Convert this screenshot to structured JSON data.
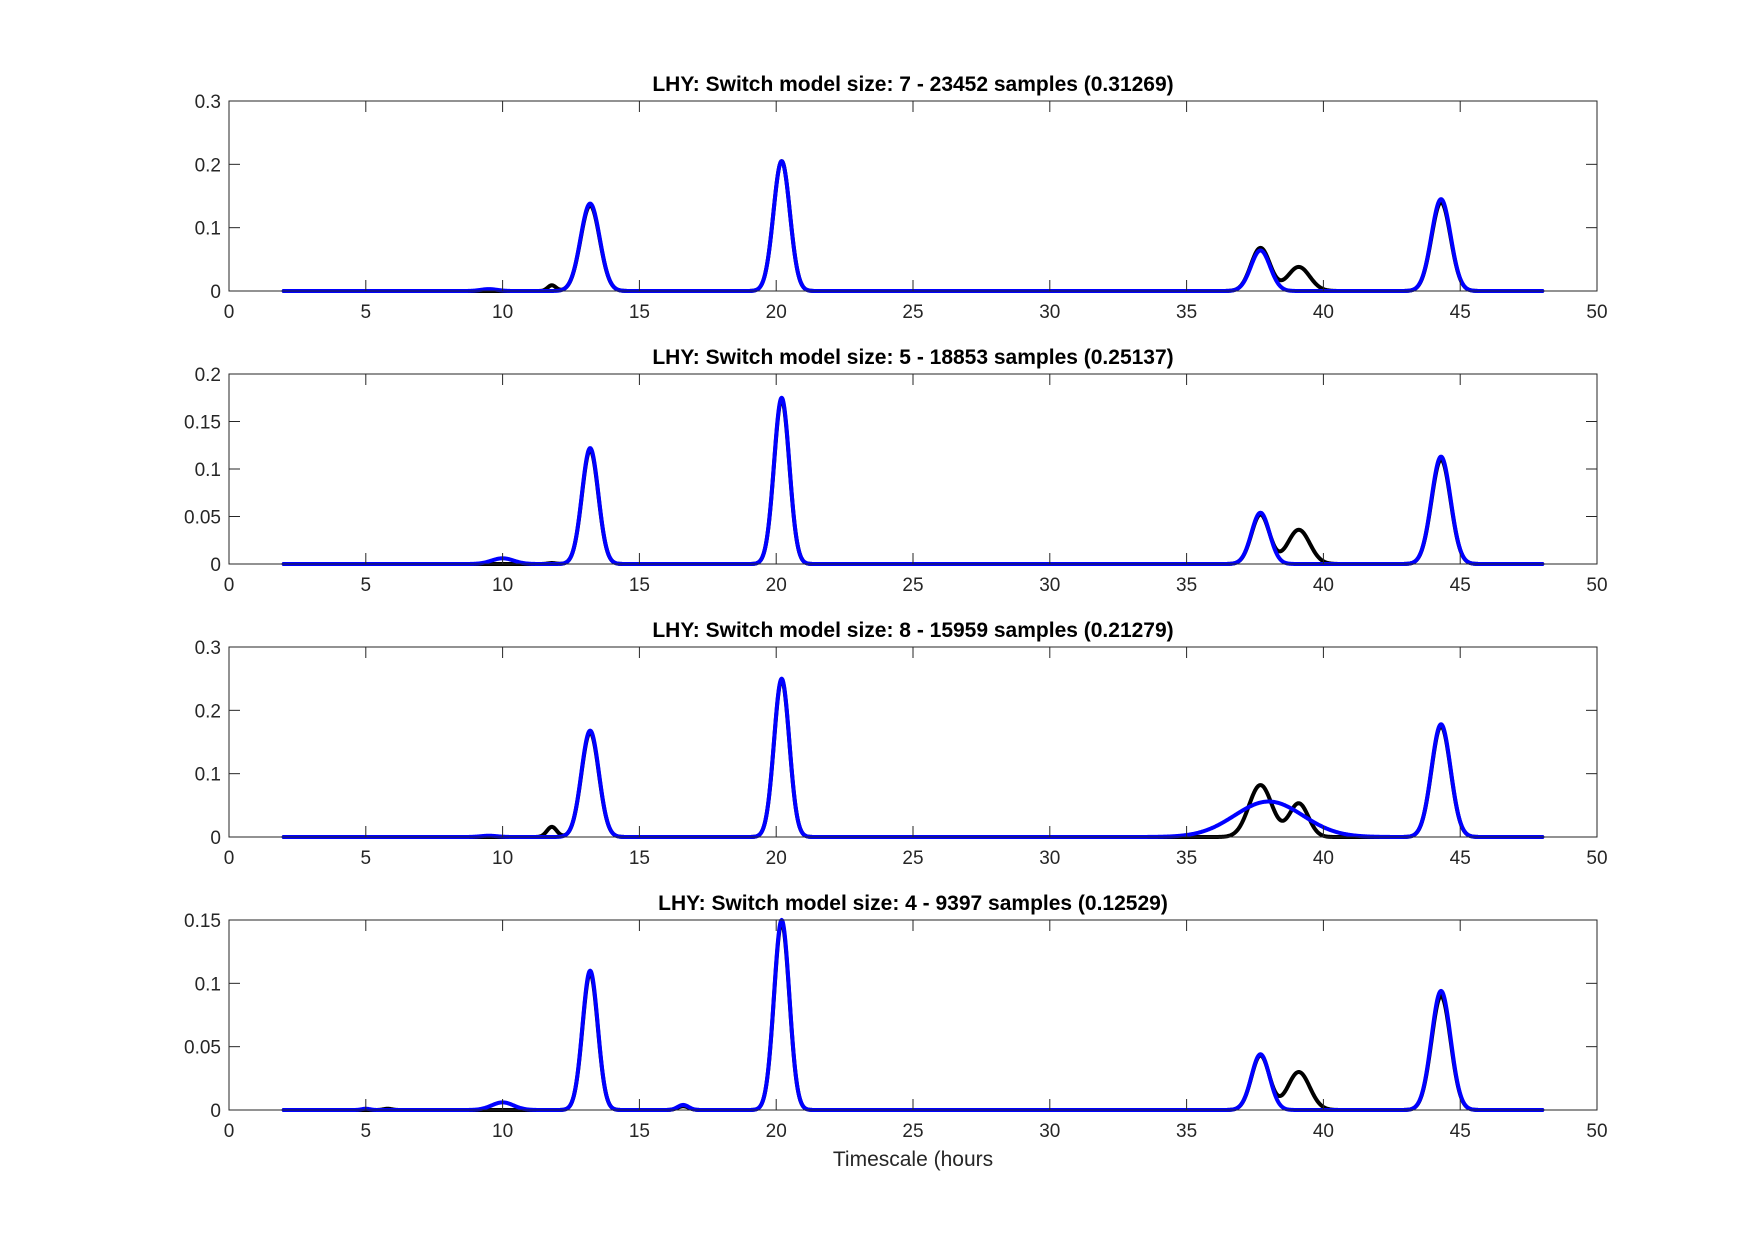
{
  "colors": {
    "black_series": "#000000",
    "blue_series": "#0000ff",
    "axis": "#262626"
  },
  "chart_data": [
    {
      "type": "line",
      "title": "LHY: Switch model size: 7 - 23452 samples (0.31269)",
      "xlabel": "",
      "ylabel": "",
      "xlim": [
        0,
        50
      ],
      "ylim": [
        0,
        0.3
      ],
      "xticks": [
        "0",
        "5",
        "10",
        "15",
        "20",
        "25",
        "30",
        "35",
        "40",
        "45",
        "50"
      ],
      "yticks": [
        "0",
        "0.1",
        "0.2",
        "0.3"
      ],
      "x_range": [
        2,
        48
      ],
      "grid": false,
      "series": [
        {
          "color": "#000000",
          "peaks": [
            [
              11.8,
              0.009,
              0.15
            ],
            [
              13.2,
              0.135,
              0.35
            ],
            [
              20.2,
              0.205,
              0.3
            ],
            [
              37.7,
              0.068,
              0.35
            ],
            [
              39.1,
              0.038,
              0.4
            ],
            [
              44.3,
              0.14,
              0.35
            ]
          ]
        },
        {
          "color": "#0000ff",
          "peaks": [
            [
              9.5,
              0.003,
              0.3
            ],
            [
              13.2,
              0.138,
              0.35
            ],
            [
              20.2,
              0.205,
              0.3
            ],
            [
              37.7,
              0.064,
              0.35
            ],
            [
              44.3,
              0.145,
              0.35
            ]
          ]
        }
      ]
    },
    {
      "type": "line",
      "title": "LHY: Switch model size: 5 - 18853 samples (0.25137)",
      "xlabel": "",
      "ylabel": "",
      "xlim": [
        0,
        50
      ],
      "ylim": [
        0,
        0.2
      ],
      "xticks": [
        "0",
        "5",
        "10",
        "15",
        "20",
        "25",
        "30",
        "35",
        "40",
        "45",
        "50"
      ],
      "yticks": [
        "0",
        "0.05",
        "0.1",
        "0.15",
        "0.2"
      ],
      "x_range": [
        2,
        48
      ],
      "grid": false,
      "series": [
        {
          "color": "#000000",
          "peaks": [
            [
              11.8,
              0.001,
              0.15
            ],
            [
              13.2,
              0.12,
              0.3
            ],
            [
              20.2,
              0.173,
              0.28
            ],
            [
              37.7,
              0.052,
              0.33
            ],
            [
              39.1,
              0.036,
              0.4
            ],
            [
              44.3,
              0.11,
              0.35
            ]
          ]
        },
        {
          "color": "#0000ff",
          "peaks": [
            [
              10.0,
              0.006,
              0.4
            ],
            [
              13.2,
              0.122,
              0.3
            ],
            [
              20.2,
              0.175,
              0.28
            ],
            [
              37.7,
              0.054,
              0.33
            ],
            [
              44.3,
              0.113,
              0.35
            ]
          ]
        }
      ]
    },
    {
      "type": "line",
      "title": "LHY: Switch model size: 8 - 15959 samples (0.21279)",
      "xlabel": "",
      "ylabel": "",
      "xlim": [
        0,
        50
      ],
      "ylim": [
        0,
        0.3
      ],
      "xticks": [
        "0",
        "5",
        "10",
        "15",
        "20",
        "25",
        "30",
        "35",
        "40",
        "45",
        "50"
      ],
      "yticks": [
        "0",
        "0.1",
        "0.2",
        "0.3"
      ],
      "x_range": [
        2,
        48
      ],
      "grid": false,
      "series": [
        {
          "color": "#000000",
          "peaks": [
            [
              11.8,
              0.016,
              0.18
            ],
            [
              13.2,
              0.165,
              0.32
            ],
            [
              20.2,
              0.248,
              0.28
            ],
            [
              37.7,
              0.082,
              0.42
            ],
            [
              39.1,
              0.053,
              0.35
            ],
            [
              44.3,
              0.175,
              0.35
            ]
          ]
        },
        {
          "color": "#0000ff",
          "peaks": [
            [
              9.5,
              0.002,
              0.3
            ],
            [
              13.2,
              0.168,
              0.32
            ],
            [
              20.2,
              0.25,
              0.28
            ],
            [
              38.0,
              0.056,
              1.25
            ],
            [
              44.3,
              0.178,
              0.35
            ]
          ]
        }
      ]
    },
    {
      "type": "line",
      "title": "LHY: Switch model size: 4 - 9397 samples (0.12529)",
      "xlabel": "Timescale (hours",
      "ylabel": "",
      "xlim": [
        0,
        50
      ],
      "ylim": [
        0,
        0.15
      ],
      "xticks": [
        "0",
        "5",
        "10",
        "15",
        "20",
        "25",
        "30",
        "35",
        "40",
        "45",
        "50"
      ],
      "yticks": [
        "0",
        "0.05",
        "0.1",
        "0.15"
      ],
      "x_range": [
        2,
        48
      ],
      "grid": false,
      "series": [
        {
          "color": "#000000",
          "peaks": [
            [
              5.8,
              0.001,
              0.15
            ],
            [
              13.2,
              0.108,
              0.28
            ],
            [
              16.6,
              0.003,
              0.2
            ],
            [
              20.2,
              0.148,
              0.28
            ],
            [
              37.7,
              0.043,
              0.33
            ],
            [
              39.1,
              0.03,
              0.4
            ],
            [
              44.3,
              0.09,
              0.35
            ]
          ]
        },
        {
          "color": "#0000ff",
          "peaks": [
            [
              5.0,
              0.001,
              0.15
            ],
            [
              10.0,
              0.006,
              0.4
            ],
            [
              13.2,
              0.11,
              0.28
            ],
            [
              16.6,
              0.004,
              0.2
            ],
            [
              20.2,
              0.15,
              0.28
            ],
            [
              37.7,
              0.044,
              0.33
            ],
            [
              44.3,
              0.094,
              0.35
            ]
          ]
        }
      ]
    }
  ]
}
